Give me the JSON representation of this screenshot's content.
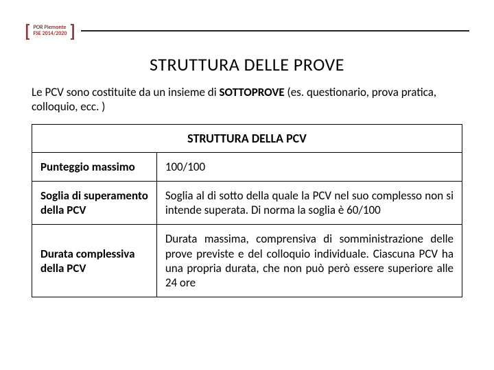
{
  "logo": {
    "line1": "POR Piemonte",
    "line2": "FSE 2014/2020"
  },
  "page_title": "STRUTTURA DELLE PROVE",
  "intro_prefix": "Le PCV sono costituite da un insieme di ",
  "intro_bold": "SOTTOPROVE",
  "intro_suffix": " (es. questionario, prova pratica, colloquio, ecc. )",
  "table": {
    "header": "STRUTTURA DELLA PCV",
    "rows": [
      {
        "label": "Punteggio massimo",
        "value": "100/100"
      },
      {
        "label": "Soglia di superamento della PCV",
        "value": "Soglia al di sotto della quale la PCV nel suo complesso non si intende superata. Di norma la soglia è 60/100"
      },
      {
        "label": "Durata complessiva della PCV",
        "value": "Durata massima, comprensiva di somministrazione delle prove previste e del colloquio individuale. Ciascuna PCV ha una propria durata, che non può però essere superiore alle 24 ore"
      }
    ]
  }
}
